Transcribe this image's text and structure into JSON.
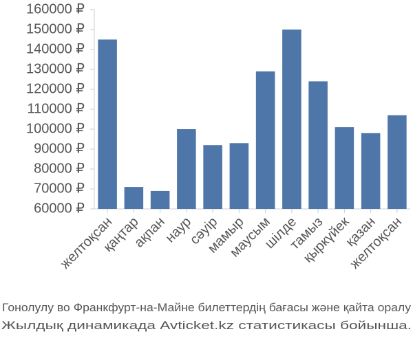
{
  "chart_data": {
    "type": "bar",
    "categories": [
      "желтоқсан",
      "қаңтар",
      "ақпан",
      "наур",
      "сәуір",
      "мамыр",
      "маусым",
      "шілде",
      "тамыз",
      "қыркүйек",
      "қазан",
      "желтоқсан"
    ],
    "values": [
      145000,
      71000,
      69000,
      100000,
      92000,
      93000,
      129000,
      150000,
      124000,
      101000,
      98000,
      107000
    ],
    "color": "#4e76a8",
    "ylim": [
      60000,
      160000
    ],
    "yticks": [
      {
        "value": 60000,
        "label": "60000 ₽"
      },
      {
        "value": 70000,
        "label": "70000 ₽"
      },
      {
        "value": 80000,
        "label": "80000 ₽"
      },
      {
        "value": 90000,
        "label": "90000 ₽"
      },
      {
        "value": 100000,
        "label": "100000 ₽"
      },
      {
        "value": 110000,
        "label": "110000 ₽"
      },
      {
        "value": 120000,
        "label": "120000 ₽"
      },
      {
        "value": 130000,
        "label": "130000 ₽"
      },
      {
        "value": 140000,
        "label": "140000 ₽"
      },
      {
        "value": 150000,
        "label": "150000 ₽"
      },
      {
        "value": 160000,
        "label": "160000 ₽"
      }
    ],
    "caption": [
      "Гонолулу во Франкфурт-на-Майне билеттердің бағасы және қайта оралу",
      "Жылдық динамикада Avticket.kz статистикасы бойынша."
    ]
  }
}
